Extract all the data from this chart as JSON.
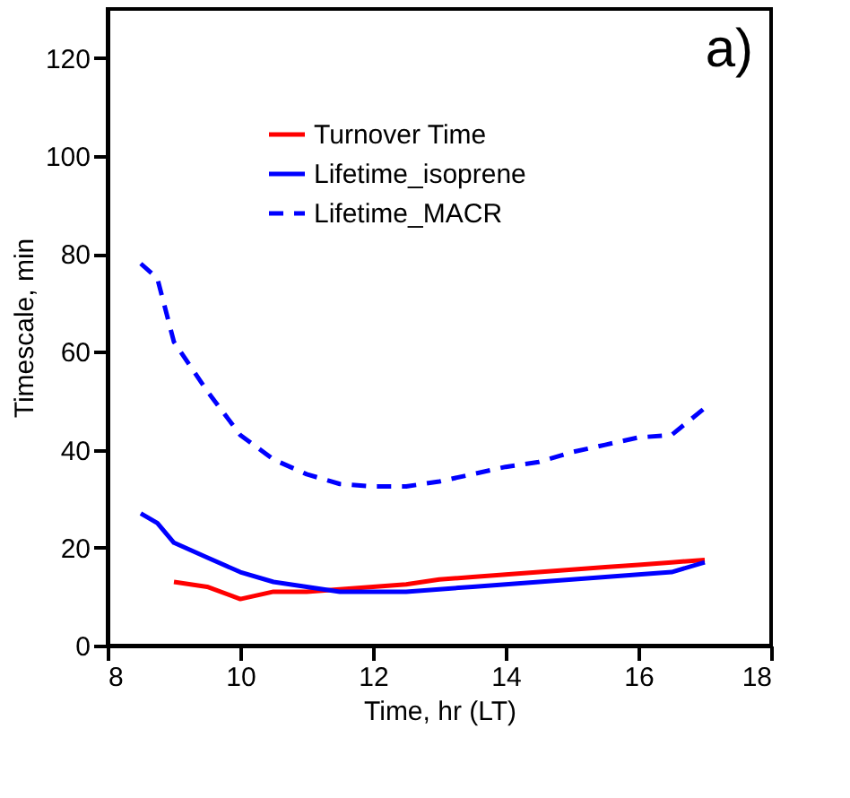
{
  "chart_data": {
    "type": "line",
    "xlabel": "Time, hr (LT)",
    "ylabel": "Timescale, min",
    "annotations": [
      "a)"
    ],
    "xlim": [
      8,
      18
    ],
    "xticks": [
      8,
      10,
      12,
      14,
      16,
      18
    ],
    "ylim": [
      0,
      130
    ],
    "yticks": [
      0,
      20,
      40,
      60,
      80,
      100,
      120
    ],
    "grid": false,
    "legend": "top",
    "marker": "none",
    "series": [
      {
        "name": "Turnover Time",
        "color": "#ff0000",
        "line_style": "solid",
        "x": [
          9,
          9.5,
          10,
          10.5,
          11,
          11.5,
          12,
          12.5,
          13,
          13.5,
          14,
          14.5,
          15,
          15.5,
          16,
          16.5,
          17
        ],
        "values": [
          13,
          12,
          9.5,
          11,
          11,
          11.5,
          12,
          12.5,
          13.5,
          14,
          14.5,
          15,
          15.5,
          16,
          16.5,
          17,
          17.5
        ]
      },
      {
        "name": "Lifetime_isoprene",
        "color": "#0000ff",
        "line_style": "solid",
        "x": [
          8.5,
          8.75,
          9,
          9.5,
          10,
          10.5,
          11,
          11.5,
          12,
          12.5,
          13,
          13.5,
          14,
          14.5,
          15,
          15.5,
          16,
          16.5,
          17
        ],
        "values": [
          27,
          25,
          21,
          18,
          15,
          13,
          12,
          11,
          11,
          11,
          11.5,
          12,
          12.5,
          13,
          13.5,
          14,
          14.5,
          15,
          17
        ]
      },
      {
        "name": "Lifetime_MACR",
        "color": "#0000ff",
        "line_style": "dashed",
        "x": [
          8.5,
          8.75,
          9,
          9.5,
          10,
          10.5,
          11,
          11.5,
          12,
          12.5,
          13,
          13.5,
          14,
          14.5,
          15,
          15.5,
          16,
          16.5,
          17
        ],
        "values": [
          78,
          75,
          62,
          52,
          43,
          38,
          35,
          33,
          32.5,
          32.5,
          33.5,
          35,
          36.5,
          37.5,
          39.5,
          41,
          42.5,
          43,
          48.5
        ]
      }
    ]
  }
}
